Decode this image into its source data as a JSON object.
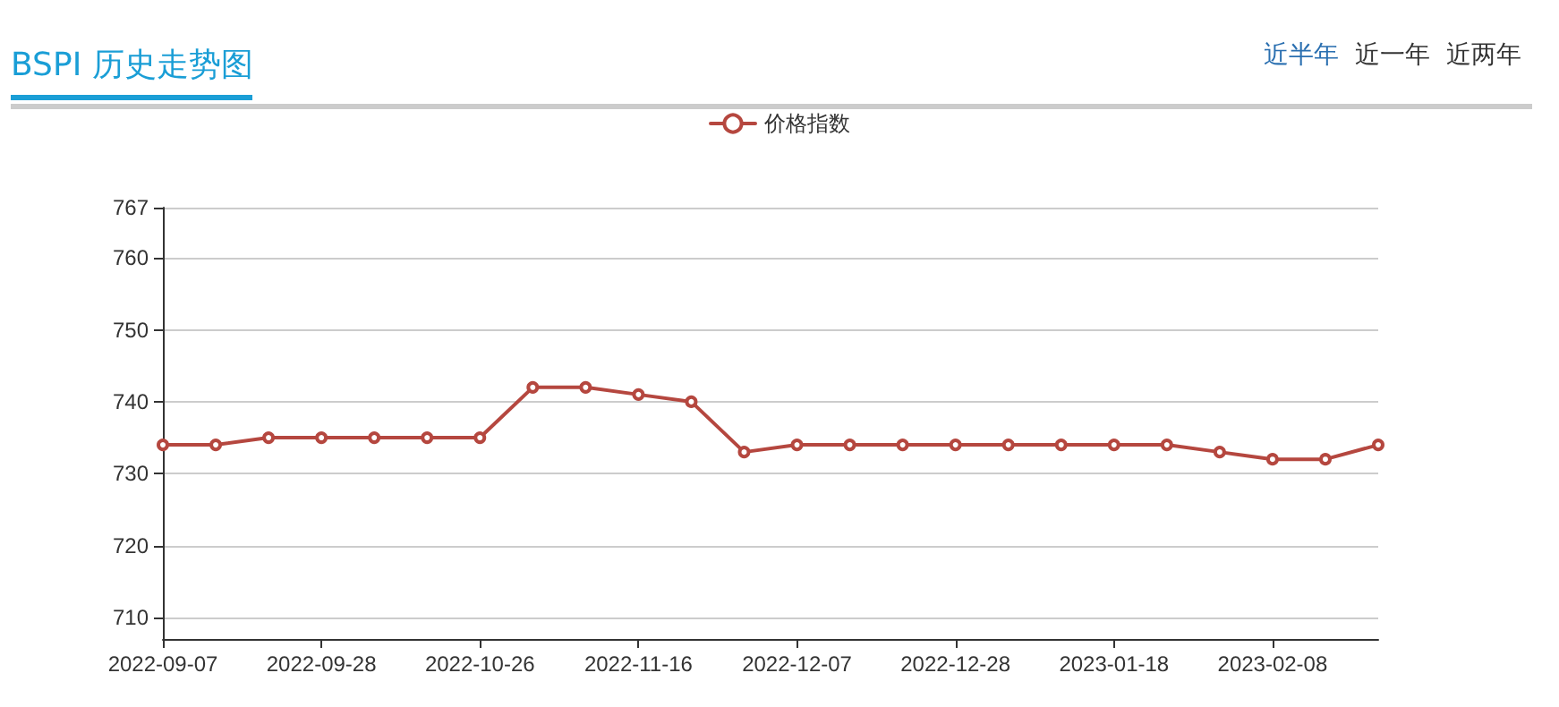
{
  "chart_data": {
    "type": "line",
    "title": "BSPI 历史走势图",
    "annotations": [
      "近半年",
      "近一年",
      "近两年"
    ],
    "categories": [
      "2022-09-07",
      null,
      null,
      "2022-09-28",
      null,
      null,
      "2022-10-26",
      null,
      null,
      "2022-11-16",
      null,
      null,
      "2022-12-07",
      null,
      null,
      "2022-12-28",
      null,
      null,
      "2023-01-18",
      null,
      null,
      "2023-02-08",
      null,
      null
    ],
    "series": [
      {
        "name": "价格指数",
        "color": "#b5473f",
        "values": [
          734,
          734,
          735,
          735,
          735,
          735,
          735,
          742,
          742,
          741,
          740,
          733,
          734,
          734,
          734,
          734,
          734,
          734,
          734,
          734,
          733,
          732,
          732,
          734
        ]
      }
    ],
    "ylim": [
      707,
      767
    ],
    "yticks": [
      710,
      720,
      730,
      740,
      750,
      760,
      767
    ],
    "grid": "y",
    "legend": "top",
    "marker": "circle",
    "line_style": "solid"
  }
}
